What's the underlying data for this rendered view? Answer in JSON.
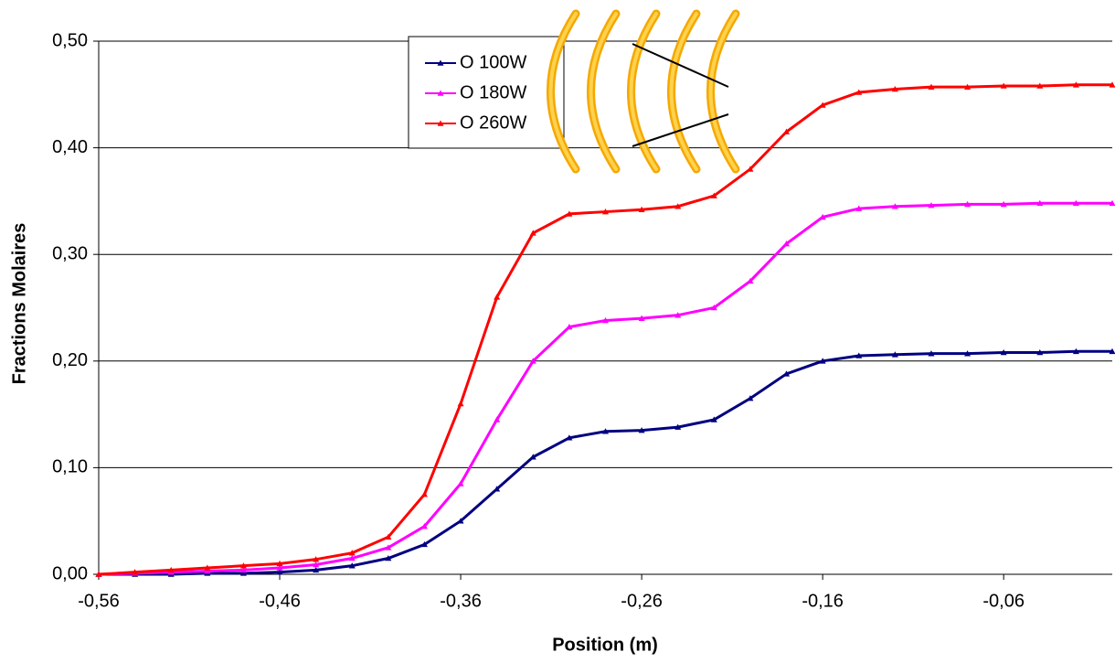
{
  "chart_data": {
    "type": "line",
    "x_label": "Position (m)",
    "y_label": "Fractions Molaires",
    "x": [
      -0.56,
      -0.54,
      -0.52,
      -0.5,
      -0.48,
      -0.46,
      -0.44,
      -0.42,
      -0.4,
      -0.38,
      -0.36,
      -0.34,
      -0.32,
      -0.3,
      -0.28,
      -0.26,
      -0.24,
      -0.22,
      -0.2,
      -0.18,
      -0.16,
      -0.14,
      -0.12,
      -0.1,
      -0.08,
      -0.06,
      -0.04,
      -0.02,
      0
    ],
    "series": [
      {
        "name": "O 100W",
        "color": "#000080",
        "values": [
          0,
          0,
          0,
          0.001,
          0.001,
          0.002,
          0.004,
          0.008,
          0.015,
          0.028,
          0.05,
          0.08,
          0.11,
          0.128,
          0.134,
          0.135,
          0.138,
          0.145,
          0.165,
          0.188,
          0.2,
          0.205,
          0.206,
          0.207,
          0.207,
          0.208,
          0.208,
          0.209,
          0.209
        ]
      },
      {
        "name": "O 180W",
        "color": "#ff00ff",
        "values": [
          0,
          0.001,
          0.002,
          0.003,
          0.004,
          0.006,
          0.009,
          0.015,
          0.025,
          0.045,
          0.085,
          0.145,
          0.2,
          0.232,
          0.238,
          0.24,
          0.243,
          0.25,
          0.275,
          0.31,
          0.335,
          0.343,
          0.345,
          0.346,
          0.347,
          0.347,
          0.348,
          0.348,
          0.348
        ]
      },
      {
        "name": "O 260W",
        "color": "#ff0000",
        "values": [
          0,
          0.002,
          0.004,
          0.006,
          0.008,
          0.01,
          0.014,
          0.02,
          0.035,
          0.075,
          0.16,
          0.26,
          0.32,
          0.338,
          0.34,
          0.342,
          0.345,
          0.355,
          0.38,
          0.415,
          0.44,
          0.452,
          0.455,
          0.457,
          0.457,
          0.458,
          0.458,
          0.459,
          0.459
        ]
      }
    ],
    "xlim": [
      -0.56,
      0
    ],
    "xticks": [
      {
        "value": -0.56,
        "label": "-0,56"
      },
      {
        "value": -0.46,
        "label": "-0,46"
      },
      {
        "value": -0.36,
        "label": "-0,36"
      },
      {
        "value": -0.26,
        "label": "-0,26"
      },
      {
        "value": -0.16,
        "label": "-0,16"
      },
      {
        "value": -0.06,
        "label": "-0,06"
      }
    ],
    "ylim": [
      0,
      0.5
    ],
    "yticks": [
      {
        "value": 0,
        "label": "0,00"
      },
      {
        "value": 0.1,
        "label": "0,10"
      },
      {
        "value": 0.2,
        "label": "0,20"
      },
      {
        "value": 0.3,
        "label": "0,30"
      },
      {
        "value": 0.4,
        "label": "0,40"
      },
      {
        "value": 0.5,
        "label": "0,50"
      }
    ],
    "grid": true,
    "legend": "top"
  }
}
